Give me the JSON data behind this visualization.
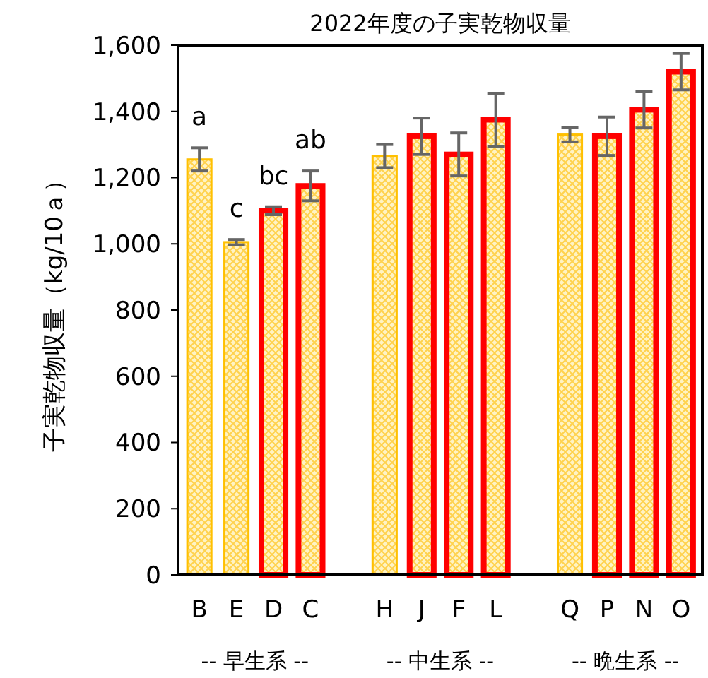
{
  "chart_data": {
    "type": "bar",
    "title": "2022年度の子実乾物収量",
    "ylabel": "子実乾物収量（kg/10ａ）",
    "categories": [
      "B",
      "E",
      "D",
      "C",
      null,
      "H",
      "J",
      "F",
      "L",
      null,
      "Q",
      "P",
      "N",
      "O"
    ],
    "values": [
      1255,
      1005,
      1100,
      1175,
      null,
      1265,
      1325,
      1270,
      1375,
      null,
      1330,
      1325,
      1405,
      1520
    ],
    "errors": [
      35,
      8,
      12,
      45,
      null,
      35,
      55,
      65,
      80,
      null,
      22,
      58,
      55,
      55
    ],
    "colors": [
      "#ffc000",
      "#ffc000",
      "#ff0000",
      "#ff0000",
      null,
      "#ffc000",
      "#ff0000",
      "#ff0000",
      "#ff0000",
      null,
      "#ffc000",
      "#ff0000",
      "#ff0000",
      "#ff0000"
    ],
    "ylim": [
      0,
      1600
    ],
    "yticks": [
      0,
      200,
      400,
      600,
      800,
      {
        "value": 1000,
        "label": "1,000"
      },
      {
        "value": 1200,
        "label": "1,200"
      },
      {
        "value": 1400,
        "label": "1,400"
      },
      {
        "value": 1600,
        "label": "1,600"
      }
    ],
    "annotations": [
      "a",
      "c",
      "bc",
      "ab",
      "-- 早生系 --",
      "-- 中生系 --",
      "-- 晩生系 --"
    ],
    "grid": false
  }
}
